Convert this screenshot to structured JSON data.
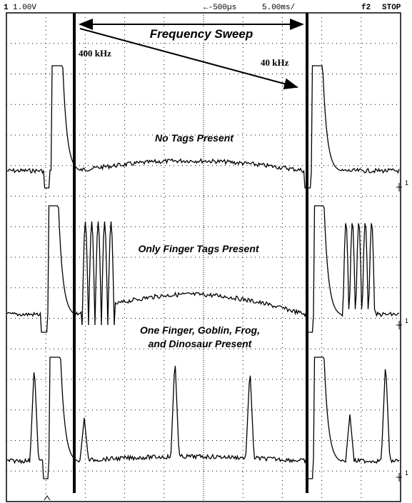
{
  "header": {
    "channel": "1",
    "scale": "1.00V",
    "delay": "←-500µs",
    "timebase": "5.00ms/",
    "function": "f2",
    "state": "STOP"
  },
  "annotations": {
    "sweep": "Frequency Sweep",
    "start_freq": "400 kHz",
    "end_freq": "40 kHz",
    "trace1": "No Tags Present",
    "trace2": "Only Finger Tags Present",
    "trace3_line1": "One Finger, Goblin, Frog,",
    "trace3_line2": "and Dinosaur Present"
  },
  "ground_marker": "1"
}
